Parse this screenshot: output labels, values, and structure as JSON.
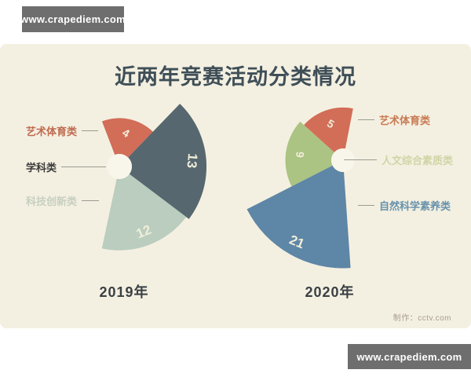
{
  "watermark_top": "www.crapediem.com",
  "watermark_bottom": "www.crapediem.com",
  "title": "近两年竞赛活动分类情况",
  "credit": "制作：cctv.com",
  "colors": {
    "card_bg": "#f4f0e1",
    "hole": "#f8f5ea",
    "value_text": "#f1eeda",
    "connector": "#9b9b92",
    "title_text": "#3f4f58",
    "year_text": "#3a4045",
    "credit_text": "#a59d8d",
    "watermark_bg": "#6e6e6e"
  },
  "chart_data": {
    "type": "pie",
    "subtype": "nightingale-rose-pair",
    "title": "近两年竞赛活动分类情况",
    "legend_position": "left chart: labels left; right chart: labels right",
    "charts": [
      {
        "year_label": "2019年",
        "categories": [
          "艺术体育类",
          "学科类",
          "科技创新类"
        ],
        "values": [
          4,
          13,
          12
        ],
        "segments": [
          {
            "category": "艺术体育类",
            "value": 4,
            "color": "#d26d58",
            "label_color": "#c06a50"
          },
          {
            "category": "学科类",
            "value": 13,
            "color": "#56676f",
            "label_color": "#3c3c3c"
          },
          {
            "category": "科技创新类",
            "value": 12,
            "color": "#bacdbe",
            "label_color": "#c6cfc0"
          }
        ]
      },
      {
        "year_label": "2020年",
        "categories": [
          "艺术体育类",
          "人文综合素质类",
          "自然科学素养类"
        ],
        "values": [
          5,
          6,
          21
        ],
        "segments": [
          {
            "category": "艺术体育类",
            "value": 5,
            "color": "#d26d58",
            "label_color": "#c87a52"
          },
          {
            "category": "人文综合素质类",
            "value": 6,
            "color": "#abc383",
            "label_color": "#ced5a5"
          },
          {
            "category": "自然科学素养类",
            "value": 21,
            "color": "#5e86a6",
            "label_color": "#6892ac"
          }
        ]
      }
    ]
  }
}
